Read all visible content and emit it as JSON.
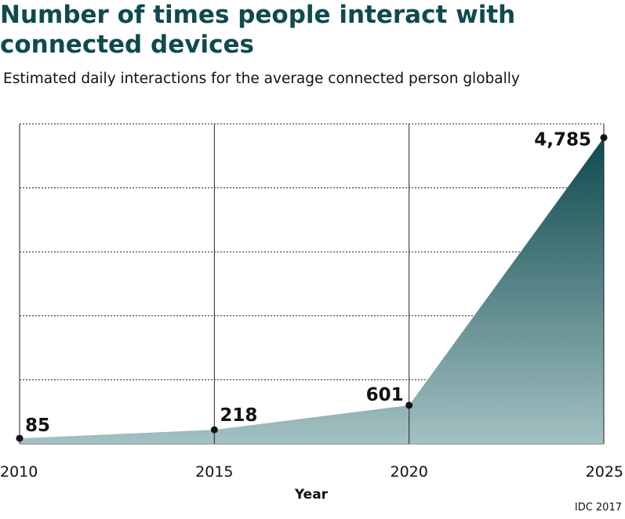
{
  "header": {
    "title": "Number of times people interact with connected devices",
    "subtitle": "Estimated daily interactions for the average connected person globally"
  },
  "source": "IDC 2017",
  "colors": {
    "title": "#0e4a4f",
    "area_top": "#0e4a4f",
    "area_bottom": "#a3c1c2",
    "grid": "#222222"
  },
  "chart_data": {
    "type": "area",
    "title": "Number of times people interact with connected devices",
    "subtitle": "Estimated daily interactions for the average connected person globally",
    "xlabel": "Year",
    "ylabel": "",
    "x": [
      2010,
      2015,
      2020,
      2025
    ],
    "y_labels": [
      "85",
      "218",
      "601",
      "4,785"
    ],
    "series": [
      {
        "values": [
          85,
          218,
          601,
          4785
        ]
      }
    ],
    "xlim": [
      2010,
      2025
    ],
    "ylim": [
      0,
      5000
    ],
    "grid": {
      "horizontal": "dotted",
      "vertical": "solid"
    },
    "legend": "none"
  }
}
